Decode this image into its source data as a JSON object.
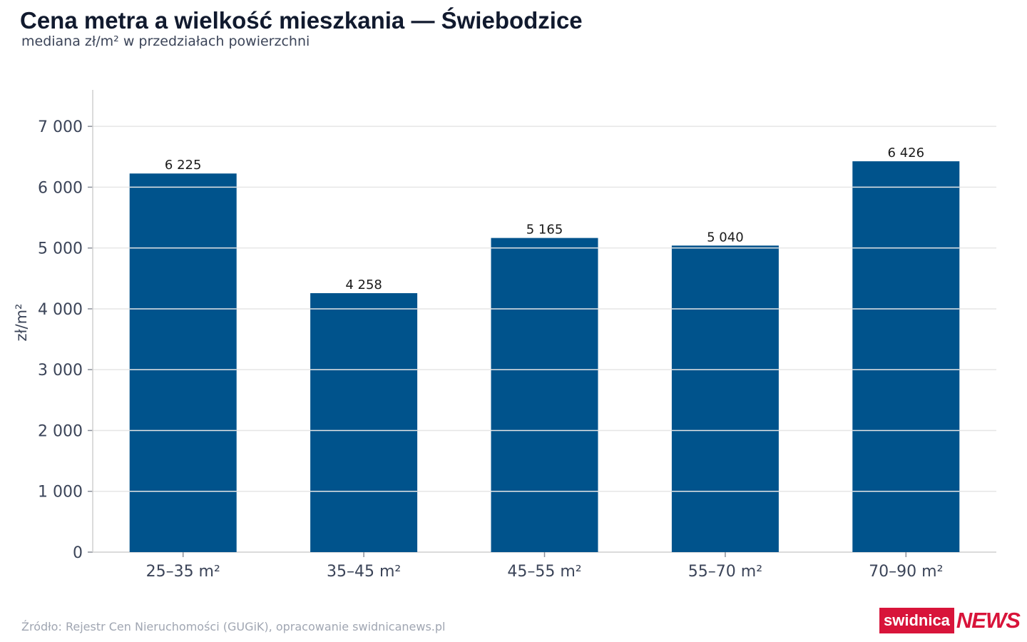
{
  "header": {
    "title": "Cena metra a wielkość mieszkania — Świebodzice",
    "subtitle": "mediana zł/m² w przedziałach powierzchni"
  },
  "footer": {
    "source": "Źródło: Rejestr Cen Nieruchomości (GUGiK), opracowanie swidnicanews.pl"
  },
  "logo": {
    "part1": "swidnica",
    "part2": "NEWS"
  },
  "chart_data": {
    "type": "bar",
    "categories": [
      "25–35 m²",
      "35–45 m²",
      "45–55 m²",
      "55–70 m²",
      "70–90 m²"
    ],
    "values": [
      6225,
      4258,
      5165,
      5040,
      6426
    ],
    "value_labels": [
      "6 225",
      "4 258",
      "5 165",
      "5 040",
      "6 426"
    ],
    "ylabel": "zł/m²",
    "ylim": [
      0,
      7600
    ],
    "yticks": [
      0,
      1000,
      2000,
      3000,
      4000,
      5000,
      6000,
      7000
    ],
    "ytick_labels": [
      "0",
      "1 000",
      "2 000",
      "3 000",
      "4 000",
      "5 000",
      "6 000",
      "7 000"
    ],
    "grid": true,
    "colors": {
      "bar": "#00538c",
      "grid": "#e6e6e6",
      "axis": "#cfcfcf",
      "tick_text": "#3b4458",
      "value_text": "#1a1a1a"
    }
  }
}
